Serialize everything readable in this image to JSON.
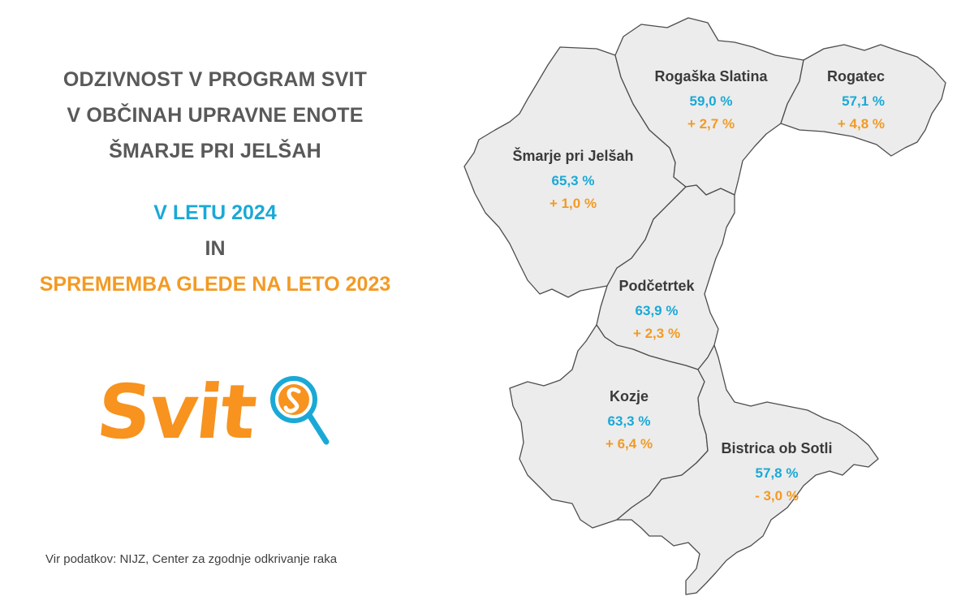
{
  "title": {
    "line1": "ODZIVNOST V PROGRAM SVIT",
    "line2": "V OBČINAH UPRAVNE ENOTE",
    "line3": "ŠMARJE PRI JELŠAH"
  },
  "subtitle": {
    "year_line": "V LETU 2024",
    "connector": "IN",
    "change_line": "SPREMEMBA GLEDE NA LETO 2023"
  },
  "logo": {
    "text": "Svit",
    "icon": "magnifier-icon"
  },
  "source": "Vir podatkov: NIJZ, Center za zgodnje odkrivanje raka",
  "colors": {
    "title": "#595959",
    "value": "#1aa9d6",
    "change": "#f39a24",
    "region_fill": "#ececec",
    "region_border": "#4d4d4d"
  },
  "municipalities": [
    {
      "name": "Rogaška Slatina",
      "value": "59,0 %",
      "change": "+ 2,7 %"
    },
    {
      "name": "Rogatec",
      "value": "57,1 %",
      "change": "+ 4,8 %"
    },
    {
      "name": "Šmarje pri Jelšah",
      "value": "65,3 %",
      "change": "+ 1,0 %"
    },
    {
      "name": "Podčetrtek",
      "value": "63,9 %",
      "change": "+ 2,3 %"
    },
    {
      "name": "Kozje",
      "value": "63,3 %",
      "change": "+ 6,4 %"
    },
    {
      "name": "Bistrica ob Sotli",
      "value": "57,8 %",
      "change": "- 3,0 %"
    }
  ]
}
